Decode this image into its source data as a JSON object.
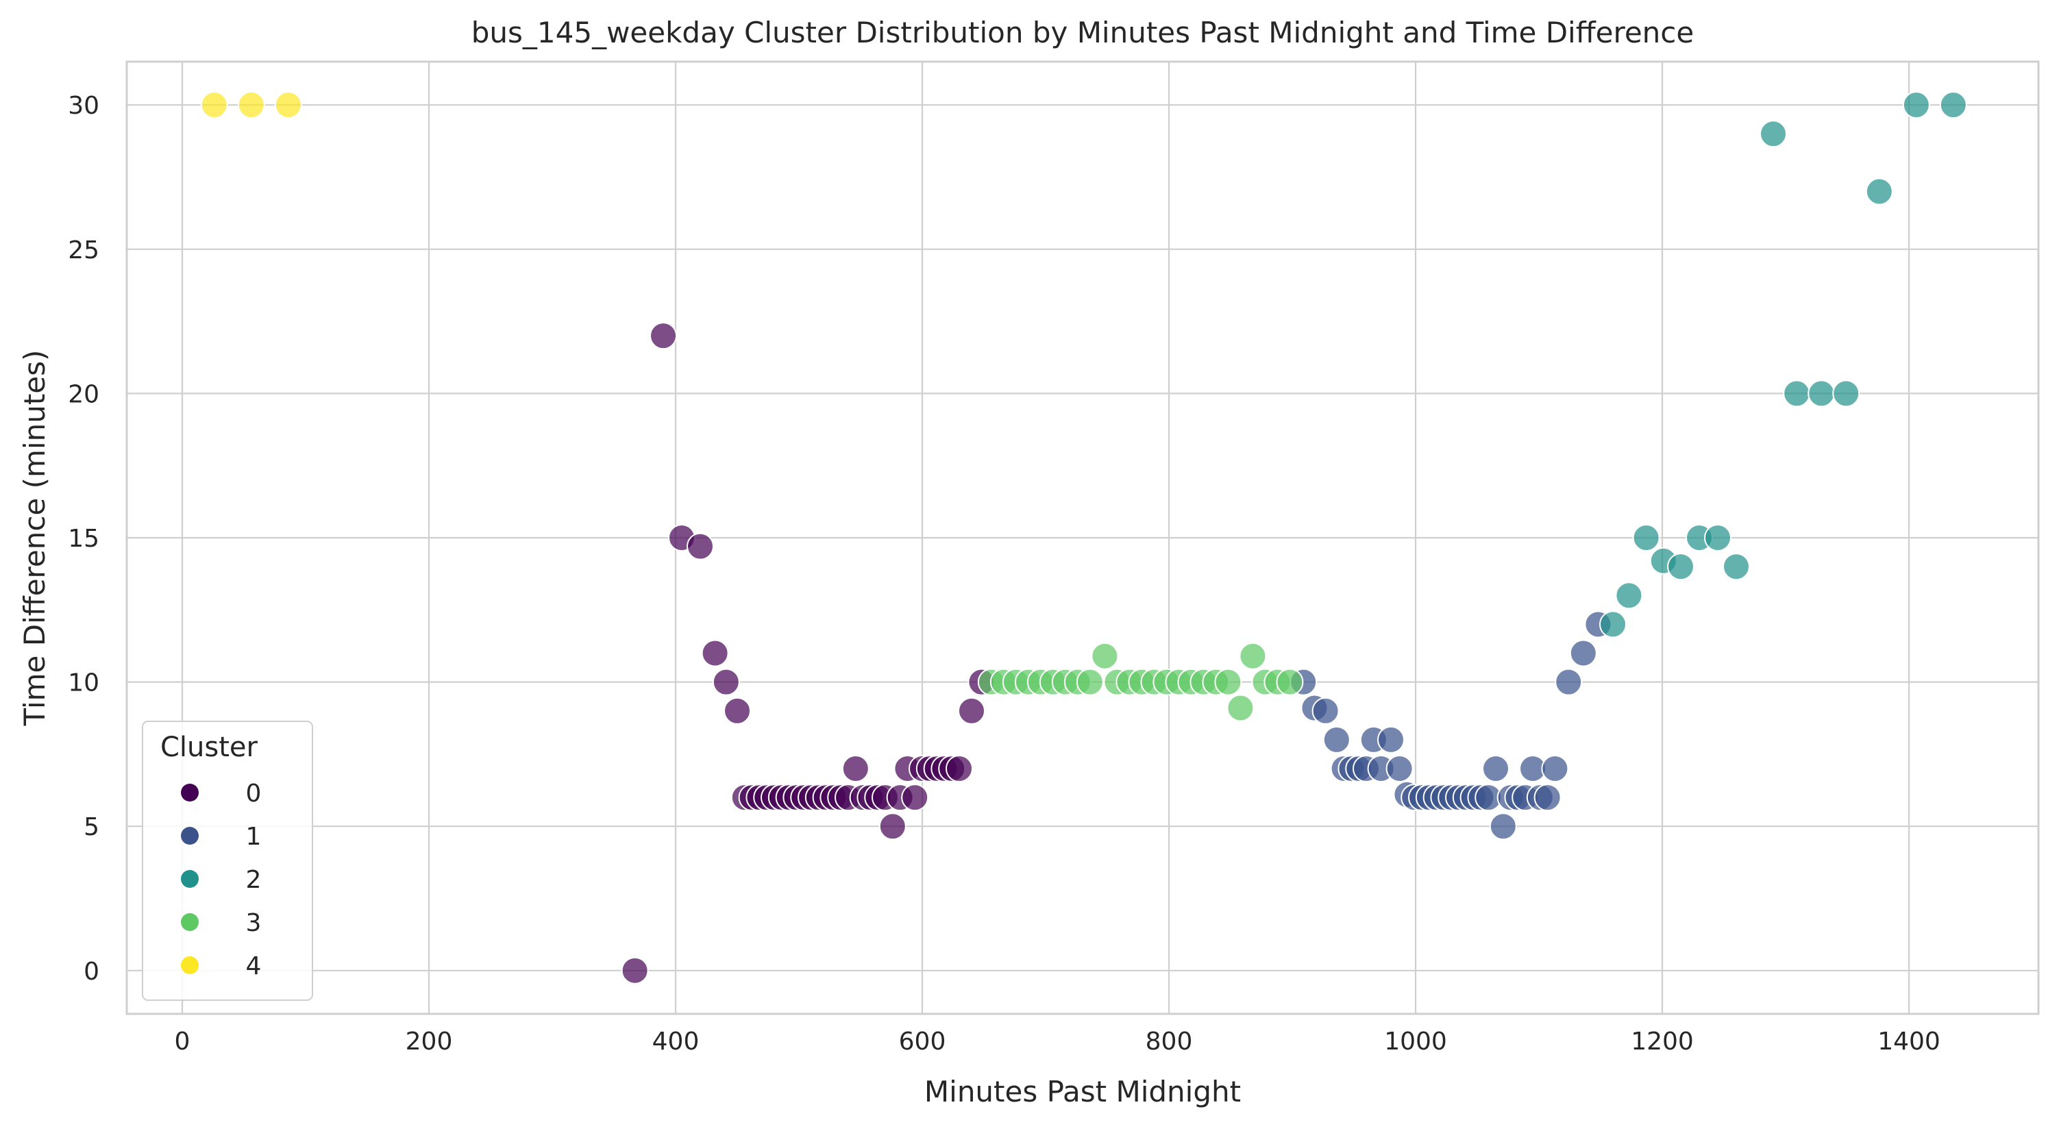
{
  "chart_data": {
    "type": "scatter",
    "title": "bus_145_weekday Cluster Distribution by Minutes Past Midnight and Time Difference",
    "xlabel": "Minutes Past Midnight",
    "ylabel": "Time Difference (minutes)",
    "xlim": [
      -45,
      1505
    ],
    "ylim": [
      -1.5,
      31.5
    ],
    "xticks": [
      0,
      200,
      400,
      600,
      800,
      1000,
      1200,
      1400
    ],
    "yticks": [
      0,
      5,
      10,
      15,
      20,
      25,
      30
    ],
    "grid": true,
    "legend": {
      "title": "Cluster",
      "placement": "lower-left",
      "entries": [
        "0",
        "1",
        "2",
        "3",
        "4"
      ]
    },
    "colors": {
      "0": "#440154",
      "1": "#3b528b",
      "2": "#21918c",
      "3": "#5ec962",
      "4": "#fde725"
    },
    "series": [
      {
        "name": "0",
        "points": [
          [
            367,
            0
          ],
          [
            390,
            22
          ],
          [
            405,
            15
          ],
          [
            420,
            14.7
          ],
          [
            432,
            11
          ],
          [
            441,
            10
          ],
          [
            450,
            9
          ],
          [
            456,
            6
          ],
          [
            462,
            6
          ],
          [
            468,
            6
          ],
          [
            474,
            6
          ],
          [
            480,
            6
          ],
          [
            486,
            6
          ],
          [
            492,
            6
          ],
          [
            498,
            6
          ],
          [
            504,
            6
          ],
          [
            510,
            6
          ],
          [
            516,
            6
          ],
          [
            522,
            6
          ],
          [
            528,
            6
          ],
          [
            534,
            6
          ],
          [
            540,
            6
          ],
          [
            546,
            7
          ],
          [
            552,
            6
          ],
          [
            558,
            6
          ],
          [
            564,
            6
          ],
          [
            570,
            6
          ],
          [
            576,
            5
          ],
          [
            582,
            6
          ],
          [
            588,
            7
          ],
          [
            594,
            6
          ],
          [
            600,
            7
          ],
          [
            606,
            7
          ],
          [
            612,
            7
          ],
          [
            618,
            7
          ],
          [
            624,
            7
          ],
          [
            630,
            7
          ],
          [
            640,
            9
          ],
          [
            648,
            10
          ]
        ]
      },
      {
        "name": "1",
        "points": [
          [
            909,
            10
          ],
          [
            918,
            9.1
          ],
          [
            927,
            9
          ],
          [
            936,
            8
          ],
          [
            942,
            7
          ],
          [
            948,
            7
          ],
          [
            954,
            7
          ],
          [
            960,
            7
          ],
          [
            966,
            8
          ],
          [
            972,
            7
          ],
          [
            980,
            8
          ],
          [
            987,
            7
          ],
          [
            993,
            6.1
          ],
          [
            999,
            6
          ],
          [
            1005,
            6
          ],
          [
            1011,
            6
          ],
          [
            1017,
            6
          ],
          [
            1023,
            6
          ],
          [
            1029,
            6
          ],
          [
            1035,
            6
          ],
          [
            1041,
            6
          ],
          [
            1047,
            6
          ],
          [
            1053,
            6
          ],
          [
            1059,
            6
          ],
          [
            1065,
            7
          ],
          [
            1071,
            5
          ],
          [
            1077,
            6
          ],
          [
            1083,
            6
          ],
          [
            1089,
            6
          ],
          [
            1095,
            7
          ],
          [
            1101,
            6
          ],
          [
            1107,
            6
          ],
          [
            1113,
            7
          ],
          [
            1124,
            10
          ],
          [
            1136,
            11
          ],
          [
            1148,
            12
          ]
        ]
      },
      {
        "name": "2",
        "points": [
          [
            1160,
            12
          ],
          [
            1173,
            13
          ],
          [
            1187,
            15
          ],
          [
            1201,
            14.2
          ],
          [
            1215,
            14
          ],
          [
            1230,
            15
          ],
          [
            1245,
            15
          ],
          [
            1260,
            14
          ],
          [
            1290,
            29
          ],
          [
            1309,
            20
          ],
          [
            1329,
            20
          ],
          [
            1349,
            20
          ],
          [
            1376,
            27
          ],
          [
            1406,
            30
          ],
          [
            1436,
            30
          ]
        ]
      },
      {
        "name": "3",
        "points": [
          [
            656,
            10
          ],
          [
            666,
            10
          ],
          [
            676,
            10
          ],
          [
            686,
            10
          ],
          [
            696,
            10
          ],
          [
            706,
            10
          ],
          [
            716,
            10
          ],
          [
            726,
            10
          ],
          [
            736,
            10
          ],
          [
            748,
            10.9
          ],
          [
            758,
            10
          ],
          [
            768,
            10
          ],
          [
            778,
            10
          ],
          [
            788,
            10
          ],
          [
            798,
            10
          ],
          [
            808,
            10
          ],
          [
            818,
            10
          ],
          [
            828,
            10
          ],
          [
            838,
            10
          ],
          [
            848,
            10
          ],
          [
            858,
            9.1
          ],
          [
            868,
            10.9
          ],
          [
            878,
            10
          ],
          [
            888,
            10
          ],
          [
            898,
            10
          ]
        ]
      },
      {
        "name": "4",
        "points": [
          [
            26,
            30
          ],
          [
            56,
            30
          ],
          [
            86,
            30
          ]
        ]
      }
    ]
  }
}
